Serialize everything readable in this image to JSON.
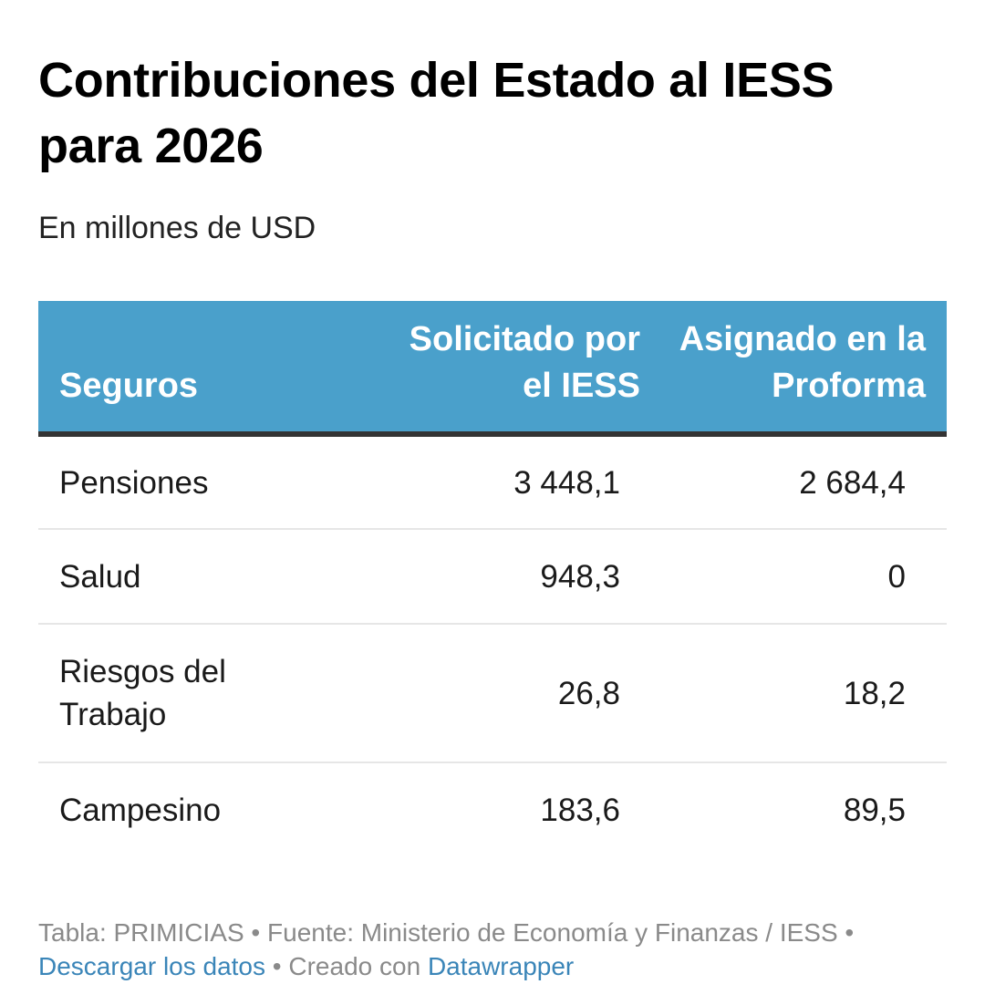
{
  "title": "Contribuciones del Estado al IESS para 2026",
  "subtitle": "En millones de USD",
  "colors": {
    "header_bg": "#4aa0cb",
    "header_text": "#ffffff",
    "header_rule": "#333333",
    "row_divider": "#e6e6e6",
    "link": "#3a85b8",
    "footer_text": "#8a8a8a"
  },
  "chart_data": {
    "type": "table",
    "title": "Contribuciones del Estado al IESS para 2026",
    "subtitle": "En millones de USD",
    "columns": [
      "Seguros",
      "Solicitado por el IESS",
      "Asignado en la Proforma"
    ],
    "rows": [
      {
        "label": "Pensiones",
        "solicitado": "3 448,1",
        "asignado": "2 684,4"
      },
      {
        "label": "Salud",
        "solicitado": "948,3",
        "asignado": "0"
      },
      {
        "label": "Riesgos del Trabajo",
        "solicitado": "26,8",
        "asignado": "18,2"
      },
      {
        "label": "Campesino",
        "solicitado": "183,6",
        "asignado": "89,5"
      }
    ]
  },
  "footer": {
    "table_credit": "Tabla: PRIMICIAS",
    "separator": "•",
    "source": "Fuente: Ministerio de Economía y Finanzas / IESS",
    "download_link": "Descargar los datos",
    "created_with": "Creado con",
    "tool_link": "Datawrapper"
  }
}
